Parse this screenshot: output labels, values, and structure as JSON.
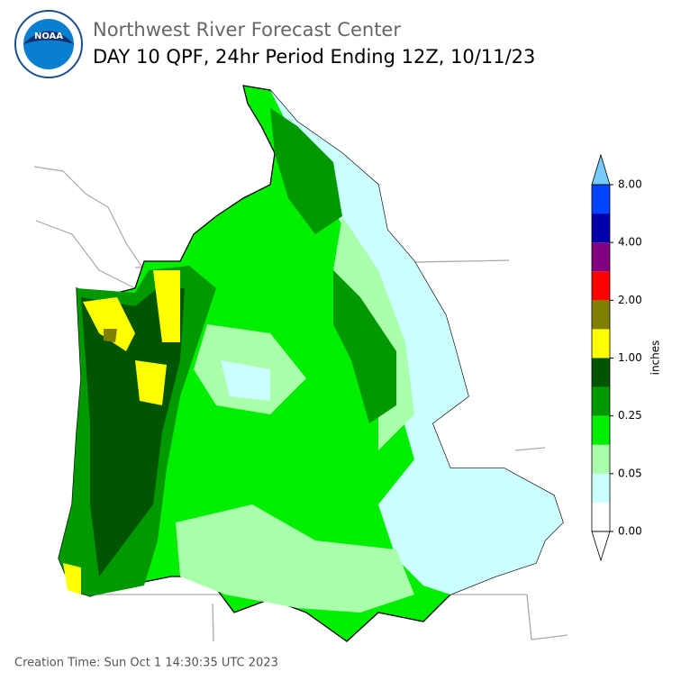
{
  "header": {
    "title": "Northwest River Forecast Center",
    "subtitle": "DAY 10 QPF, 24hr Period Ending 12Z, 10/11/23"
  },
  "legend": {
    "label": "inches",
    "colors": [
      "#ffffff",
      "#ccffff",
      "#aaffaa",
      "#00ee00",
      "#009900",
      "#005500",
      "#ffff00",
      "#807f00",
      "#ff0000",
      "#800080",
      "#0000aa",
      "#0044ff"
    ],
    "under_color": "#ffffff",
    "over_color": "#77ccff",
    "ticks": [
      {
        "value": 0,
        "label": "0.00"
      },
      {
        "value": 0.05,
        "label": "0.05"
      },
      {
        "value": 0.25,
        "label": "0.25"
      },
      {
        "value": 1,
        "label": "1.00"
      },
      {
        "value": 2,
        "label": "2.00"
      },
      {
        "value": 4,
        "label": "4.00"
      },
      {
        "value": 8,
        "label": "8.00"
      }
    ]
  },
  "footer": {
    "creation_time": "Creation Time: Sun Oct 1 14:30:35 UTC 2023"
  }
}
